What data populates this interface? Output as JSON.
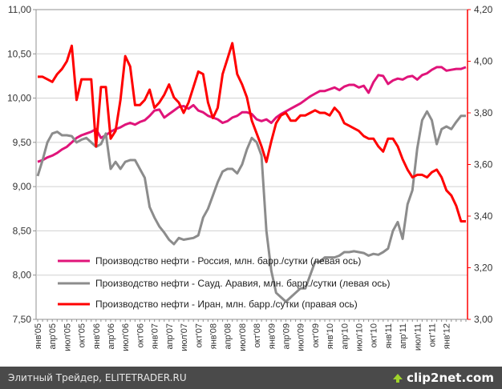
{
  "chart_data": {
    "type": "line",
    "left_axis": {
      "min": 7.5,
      "max": 11.0,
      "step": 0.5,
      "ticks": [
        "7,50",
        "8,00",
        "8,50",
        "9,00",
        "9,50",
        "10,00",
        "10,50",
        "11,00"
      ]
    },
    "right_axis": {
      "min": 3.0,
      "max": 4.2,
      "step": 0.2,
      "ticks": [
        "3,00",
        "3,20",
        "3,40",
        "3,60",
        "3,80",
        "4,00",
        "4,20"
      ]
    },
    "x_labels": [
      "янв'05",
      "апр'05",
      "июл'05",
      "окт'05",
      "янв'06",
      "апр'06",
      "июл'06",
      "окт'06",
      "янв'07",
      "апр'07",
      "июл'07",
      "окт'07",
      "янв'08",
      "апр'08",
      "июл'08",
      "окт'08",
      "янв'09",
      "апр'09",
      "июл'09",
      "окт'09",
      "янв'10",
      "апр'10",
      "июл'10",
      "окт'10",
      "янв'11",
      "апр'11",
      "июл'11",
      "окт'11",
      "янв'12"
    ],
    "grid": true,
    "legend_position": "bottom-inside",
    "series": [
      {
        "name": "Производство нефти - Россия, млн. барр./сутки (левая ось)",
        "axis": "left",
        "color": "#e0147a",
        "values": [
          9.28,
          9.3,
          9.33,
          9.35,
          9.38,
          9.42,
          9.45,
          9.5,
          9.55,
          9.58,
          9.6,
          9.62,
          9.65,
          9.55,
          9.58,
          9.62,
          9.65,
          9.67,
          9.7,
          9.72,
          9.7,
          9.73,
          9.75,
          9.8,
          9.86,
          9.87,
          9.78,
          9.82,
          9.86,
          9.9,
          9.91,
          9.88,
          9.92,
          9.86,
          9.84,
          9.8,
          9.78,
          9.76,
          9.72,
          9.74,
          9.78,
          9.8,
          9.84,
          9.84,
          9.82,
          9.76,
          9.74,
          9.76,
          9.72,
          9.78,
          9.82,
          9.85,
          9.88,
          9.91,
          9.94,
          9.98,
          10.02,
          10.05,
          10.08,
          10.08,
          10.1,
          10.12,
          10.09,
          10.13,
          10.15,
          10.15,
          10.12,
          10.14,
          10.06,
          10.18,
          10.26,
          10.25,
          10.16,
          10.2,
          10.22,
          10.21,
          10.24,
          10.25,
          10.21,
          10.26,
          10.28,
          10.32,
          10.35,
          10.35,
          10.31,
          10.32,
          10.33,
          10.33,
          10.35
        ]
      },
      {
        "name": "Производство нефти - Сауд. Аравия, млн. барр./сутки (левая ось)",
        "axis": "left",
        "color": "#8c8c8c",
        "values": [
          9.12,
          9.3,
          9.5,
          9.6,
          9.62,
          9.58,
          9.58,
          9.57,
          9.5,
          9.53,
          9.55,
          9.5,
          9.45,
          9.48,
          9.6,
          9.2,
          9.28,
          9.2,
          9.28,
          9.3,
          9.3,
          9.2,
          9.1,
          8.77,
          8.65,
          8.55,
          8.48,
          8.4,
          8.35,
          8.42,
          8.4,
          8.41,
          8.42,
          8.45,
          8.65,
          8.75,
          8.9,
          9.05,
          9.17,
          9.2,
          9.2,
          9.15,
          9.25,
          9.42,
          9.55,
          9.5,
          9.35,
          8.5,
          8.05,
          7.8,
          7.75,
          7.7,
          7.75,
          7.8,
          7.85,
          7.85,
          8.0,
          8.15,
          8.15,
          8.2,
          8.2,
          8.2,
          8.22,
          8.26,
          8.26,
          8.27,
          8.26,
          8.25,
          8.22,
          8.24,
          8.23,
          8.26,
          8.3,
          8.5,
          8.6,
          8.41,
          8.8,
          8.96,
          9.43,
          9.75,
          9.85,
          9.75,
          9.48,
          9.65,
          9.68,
          9.65,
          9.73,
          9.8,
          9.8
        ]
      },
      {
        "name": "Производство нефти - Иран, млн. барр./сутки (правая ось)",
        "axis": "right",
        "color": "#ff0000",
        "values": [
          3.94,
          3.94,
          3.93,
          3.92,
          3.95,
          3.97,
          4.0,
          4.06,
          3.85,
          3.93,
          3.93,
          3.93,
          3.67,
          3.9,
          3.9,
          3.7,
          3.73,
          3.85,
          4.02,
          3.98,
          3.83,
          3.83,
          3.85,
          3.89,
          3.82,
          3.84,
          3.87,
          3.91,
          3.86,
          3.84,
          3.8,
          3.84,
          3.9,
          3.96,
          3.95,
          3.84,
          3.78,
          3.82,
          3.95,
          4.01,
          4.07,
          3.95,
          3.91,
          3.86,
          3.77,
          3.72,
          3.67,
          3.61,
          3.69,
          3.76,
          3.79,
          3.8,
          3.77,
          3.77,
          3.79,
          3.79,
          3.8,
          3.81,
          3.8,
          3.8,
          3.79,
          3.82,
          3.8,
          3.76,
          3.75,
          3.74,
          3.73,
          3.71,
          3.7,
          3.7,
          3.67,
          3.65,
          3.7,
          3.7,
          3.67,
          3.62,
          3.58,
          3.55,
          3.56,
          3.56,
          3.55,
          3.57,
          3.58,
          3.55,
          3.5,
          3.48,
          3.44,
          3.38,
          3.38
        ]
      }
    ]
  },
  "footer": {
    "text": "Элитный Трейдер, ELITETRADER.RU",
    "brand": "clip2net.com"
  }
}
